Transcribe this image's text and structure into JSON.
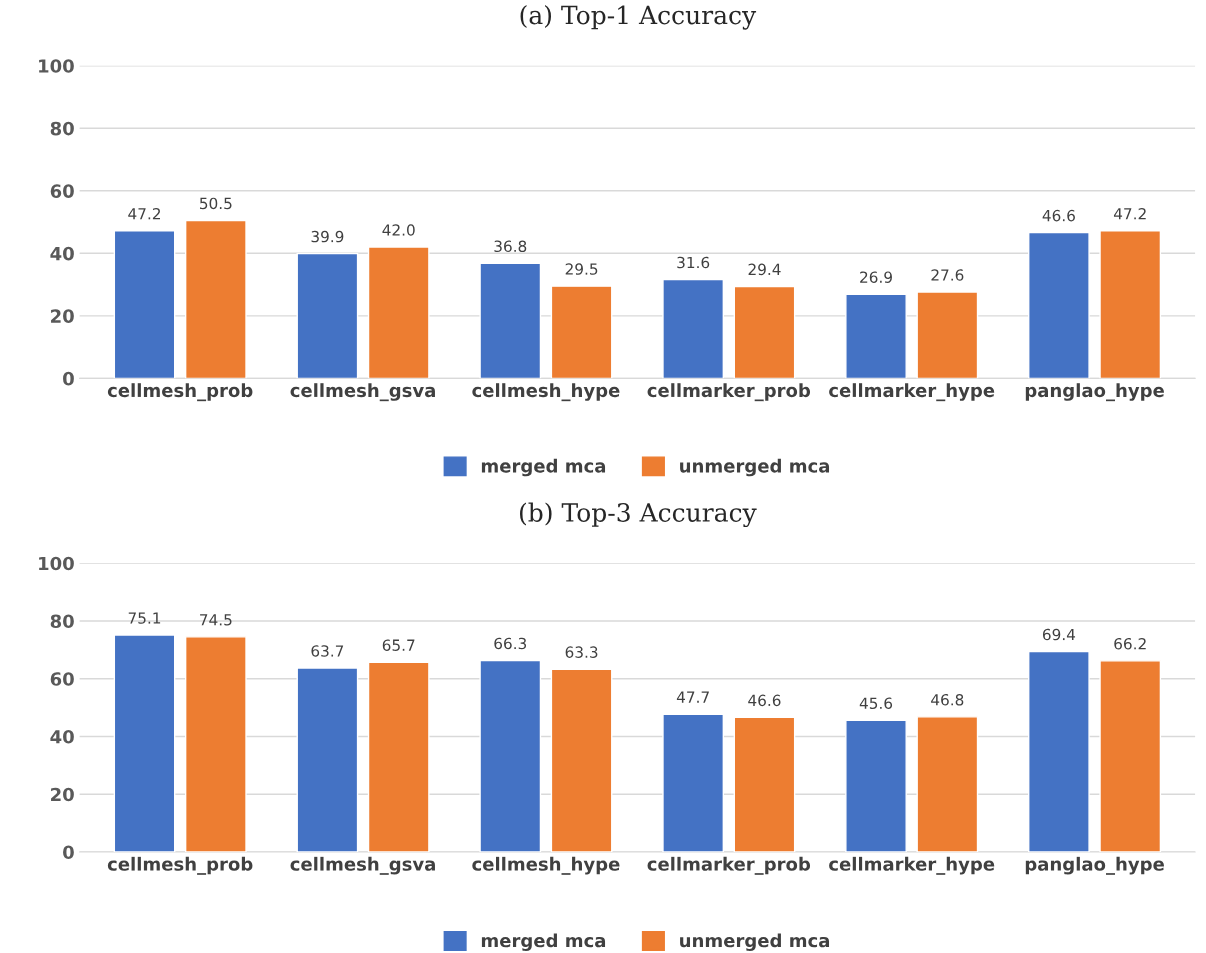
{
  "chart_data": [
    {
      "type": "bar",
      "title": "(a) Top-1 Accuracy",
      "categories": [
        "cellmesh_prob",
        "cellmesh_gsva",
        "cellmesh_hype",
        "cellmarker_prob",
        "cellmarker_hype",
        "panglao_hype"
      ],
      "series": [
        {
          "name": "merged mca",
          "color": "#4472c4",
          "values": [
            47.2,
            39.9,
            36.8,
            31.6,
            26.9,
            46.6
          ],
          "value_labels": [
            "47.2",
            "39.9",
            "36.8",
            "31.6",
            "26.9",
            "46.6"
          ]
        },
        {
          "name": "unmerged mca",
          "color": "#ed7d31",
          "values": [
            50.5,
            42,
            29.5,
            29.4,
            27.6,
            47.2
          ],
          "value_labels": [
            "50.5",
            "42.0",
            "29.5",
            "29.4",
            "27.6",
            "47.2"
          ]
        }
      ],
      "ylim": [
        0,
        100
      ],
      "yticks": [
        0,
        20,
        40,
        60,
        80,
        100
      ],
      "grid": "y",
      "legend": "bottom"
    },
    {
      "type": "bar",
      "title": "(b) Top-3 Accuracy",
      "categories": [
        "cellmesh_prob",
        "cellmesh_gsva",
        "cellmesh_hype",
        "cellmarker_prob",
        "cellmarker_hype",
        "panglao_hype"
      ],
      "series": [
        {
          "name": "merged mca",
          "color": "#4472c4",
          "values": [
            75.1,
            63.7,
            66.3,
            47.7,
            45.6,
            69.4
          ],
          "value_labels": [
            "75.1",
            "63.7",
            "66.3",
            "47.7",
            "45.6",
            "69.4"
          ]
        },
        {
          "name": "unmerged mca",
          "color": "#ed7d31",
          "values": [
            74.5,
            65.7,
            63.3,
            46.6,
            46.8,
            66.2
          ],
          "value_labels": [
            "74.5",
            "65.7",
            "63.3",
            "46.6",
            "46.8",
            "66.2"
          ]
        }
      ],
      "ylim": [
        0,
        100
      ],
      "yticks": [
        0,
        20,
        40,
        60,
        80,
        100
      ],
      "grid": "y",
      "legend": "bottom"
    }
  ]
}
